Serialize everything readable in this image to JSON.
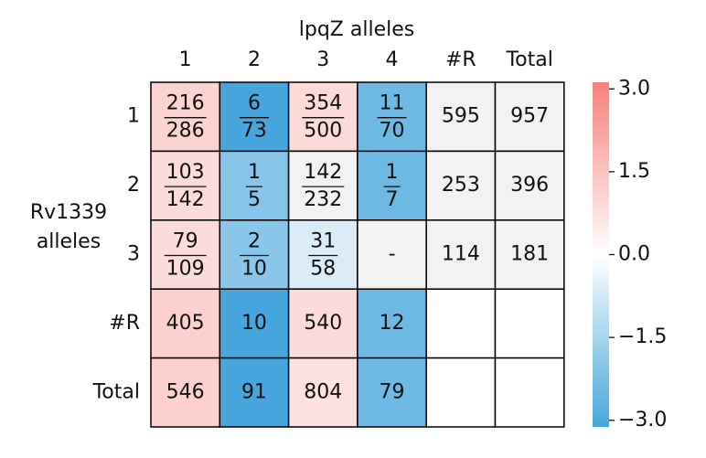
{
  "heatmap": {
    "x_label": "lpqZ alleles",
    "y_label": [
      "Rv1339",
      "alleles"
    ],
    "columns": [
      "1",
      "2",
      "3",
      "4",
      "#R",
      "Total"
    ],
    "rows": [
      "1",
      "2",
      "3",
      "#R",
      "Total"
    ],
    "cells": [
      [
        {
          "num": "216",
          "den": "286",
          "color": "#fbd3d1"
        },
        {
          "num": "6",
          "den": "73",
          "color": "#46a6dd"
        },
        {
          "num": "354",
          "den": "500",
          "color": "#fcdad8"
        },
        {
          "num": "11",
          "den": "70",
          "color": "#6db9e4"
        },
        {
          "text": "595",
          "color": "#f2f2f2"
        },
        {
          "text": "957",
          "color": "#f2f2f2"
        }
      ],
      [
        {
          "num": "103",
          "den": "142",
          "color": "#fcdcda"
        },
        {
          "num": "1",
          "den": "5",
          "color": "#88c5ea"
        },
        {
          "num": "142",
          "den": "232",
          "color": "#f2f2f2"
        },
        {
          "num": "1",
          "den": "7",
          "color": "#6db9e4"
        },
        {
          "text": "253",
          "color": "#f2f2f2"
        },
        {
          "text": "396",
          "color": "#f2f2f2"
        }
      ],
      [
        {
          "num": "79",
          "den": "109",
          "color": "#fcdcda"
        },
        {
          "num": "2",
          "den": "10",
          "color": "#8ac6ea"
        },
        {
          "num": "31",
          "den": "58",
          "color": "#dbecf7"
        },
        {
          "text": "-",
          "color": "#f2f2f2"
        },
        {
          "text": "114",
          "color": "#f2f2f2"
        },
        {
          "text": "181",
          "color": "#f2f2f2"
        }
      ],
      [
        {
          "text": "405",
          "color": "#fbd0ce"
        },
        {
          "text": "10",
          "color": "#46a6dd"
        },
        {
          "text": "540",
          "color": "#fcdcda"
        },
        {
          "text": "12",
          "color": "#6db9e4"
        },
        null,
        null
      ],
      [
        {
          "text": "546",
          "color": "#fbd0ce"
        },
        {
          "text": "91",
          "color": "#46a6dd"
        },
        {
          "text": "804",
          "color": "#fde2e0"
        },
        {
          "text": "79",
          "color": "#6db9e4"
        },
        null,
        null
      ]
    ],
    "colorbar": {
      "lim": [
        -3.12,
        3.12
      ],
      "colors": [
        "#46a6dd",
        "#ffffff",
        "#f7807b"
      ],
      "ticks": [
        {
          "value": 3.0,
          "label": "3.0"
        },
        {
          "value": 1.5,
          "label": "1.5"
        },
        {
          "value": 0.0,
          "label": "0.0"
        },
        {
          "value": -1.5,
          "label": "−1.5"
        },
        {
          "value": -3.0,
          "label": "−3.0"
        }
      ]
    }
  }
}
